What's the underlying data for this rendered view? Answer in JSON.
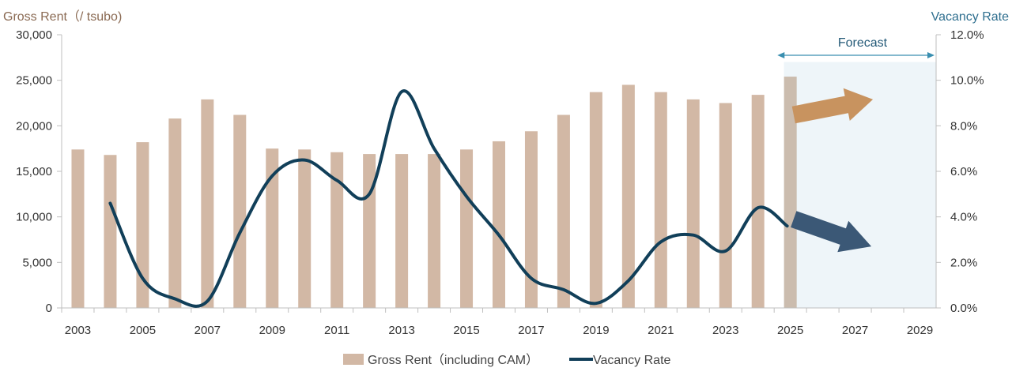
{
  "chart_data": {
    "type": "bar+line",
    "title": "",
    "y_left_title": "Gross Rent（/ tsubo)",
    "y_right_title": "Vacancy Rate",
    "forecast_label": "Forecast",
    "x_tick_labels": [
      "2003",
      "2005",
      "2007",
      "2009",
      "2011",
      "2013",
      "2015",
      "2017",
      "2019",
      "2021",
      "2023",
      "2025",
      "2027",
      "2029"
    ],
    "x_range": [
      2003,
      2029
    ],
    "forecast_range": [
      2024.8,
      2029.5
    ],
    "y_left": {
      "min": 0,
      "max": 30000,
      "ticks": [
        0,
        5000,
        10000,
        15000,
        20000,
        25000,
        30000
      ],
      "tick_labels": [
        "0",
        "5,000",
        "10,000",
        "15,000",
        "20,000",
        "25,000",
        "30,000"
      ]
    },
    "y_right": {
      "min": 0,
      "max": 12,
      "ticks": [
        0,
        2,
        4,
        6,
        8,
        10,
        12
      ],
      "tick_labels": [
        "0.0%",
        "2.0%",
        "4.0%",
        "6.0%",
        "8.0%",
        "10.0%",
        "12.0%"
      ]
    },
    "series": [
      {
        "name": "Gross Rent（including CAM）",
        "type": "bar",
        "axis": "left",
        "color": "#d2b8a5",
        "forecast_color": "#cbbcae",
        "x": [
          2003,
          2004,
          2005,
          2006,
          2007,
          2008,
          2009,
          2010,
          2011,
          2012,
          2013,
          2014,
          2015,
          2016,
          2017,
          2018,
          2019,
          2020,
          2021,
          2022,
          2023,
          2024,
          2025
        ],
        "values": [
          17400,
          16800,
          18200,
          20800,
          22900,
          21200,
          17500,
          17400,
          17100,
          16900,
          16900,
          16900,
          17400,
          18300,
          19400,
          21200,
          23700,
          24500,
          23700,
          22900,
          22500,
          23400,
          25400
        ]
      },
      {
        "name": "Vacancy Rate",
        "type": "line",
        "axis": "right",
        "color": "#113f59",
        "x": [
          2004,
          2005,
          2006,
          2007,
          2008,
          2009,
          2010,
          2011,
          2012,
          2013,
          2014,
          2015,
          2016,
          2017,
          2018,
          2019,
          2020,
          2021,
          2022,
          2023,
          2024,
          2024.9
        ],
        "values": [
          4.6,
          1.3,
          0.4,
          0.3,
          3.3,
          5.8,
          6.5,
          5.6,
          5.0,
          9.5,
          7.0,
          4.9,
          3.2,
          1.3,
          0.8,
          0.2,
          1.2,
          2.9,
          3.2,
          2.5,
          4.4,
          3.6
        ]
      }
    ],
    "forecast_arrows": [
      {
        "series": "Gross Rent",
        "direction": "up",
        "color": "#c8935f"
      },
      {
        "series": "Vacancy Rate",
        "direction": "down",
        "color": "#3b5876"
      }
    ],
    "legend_position": "bottom-center"
  }
}
